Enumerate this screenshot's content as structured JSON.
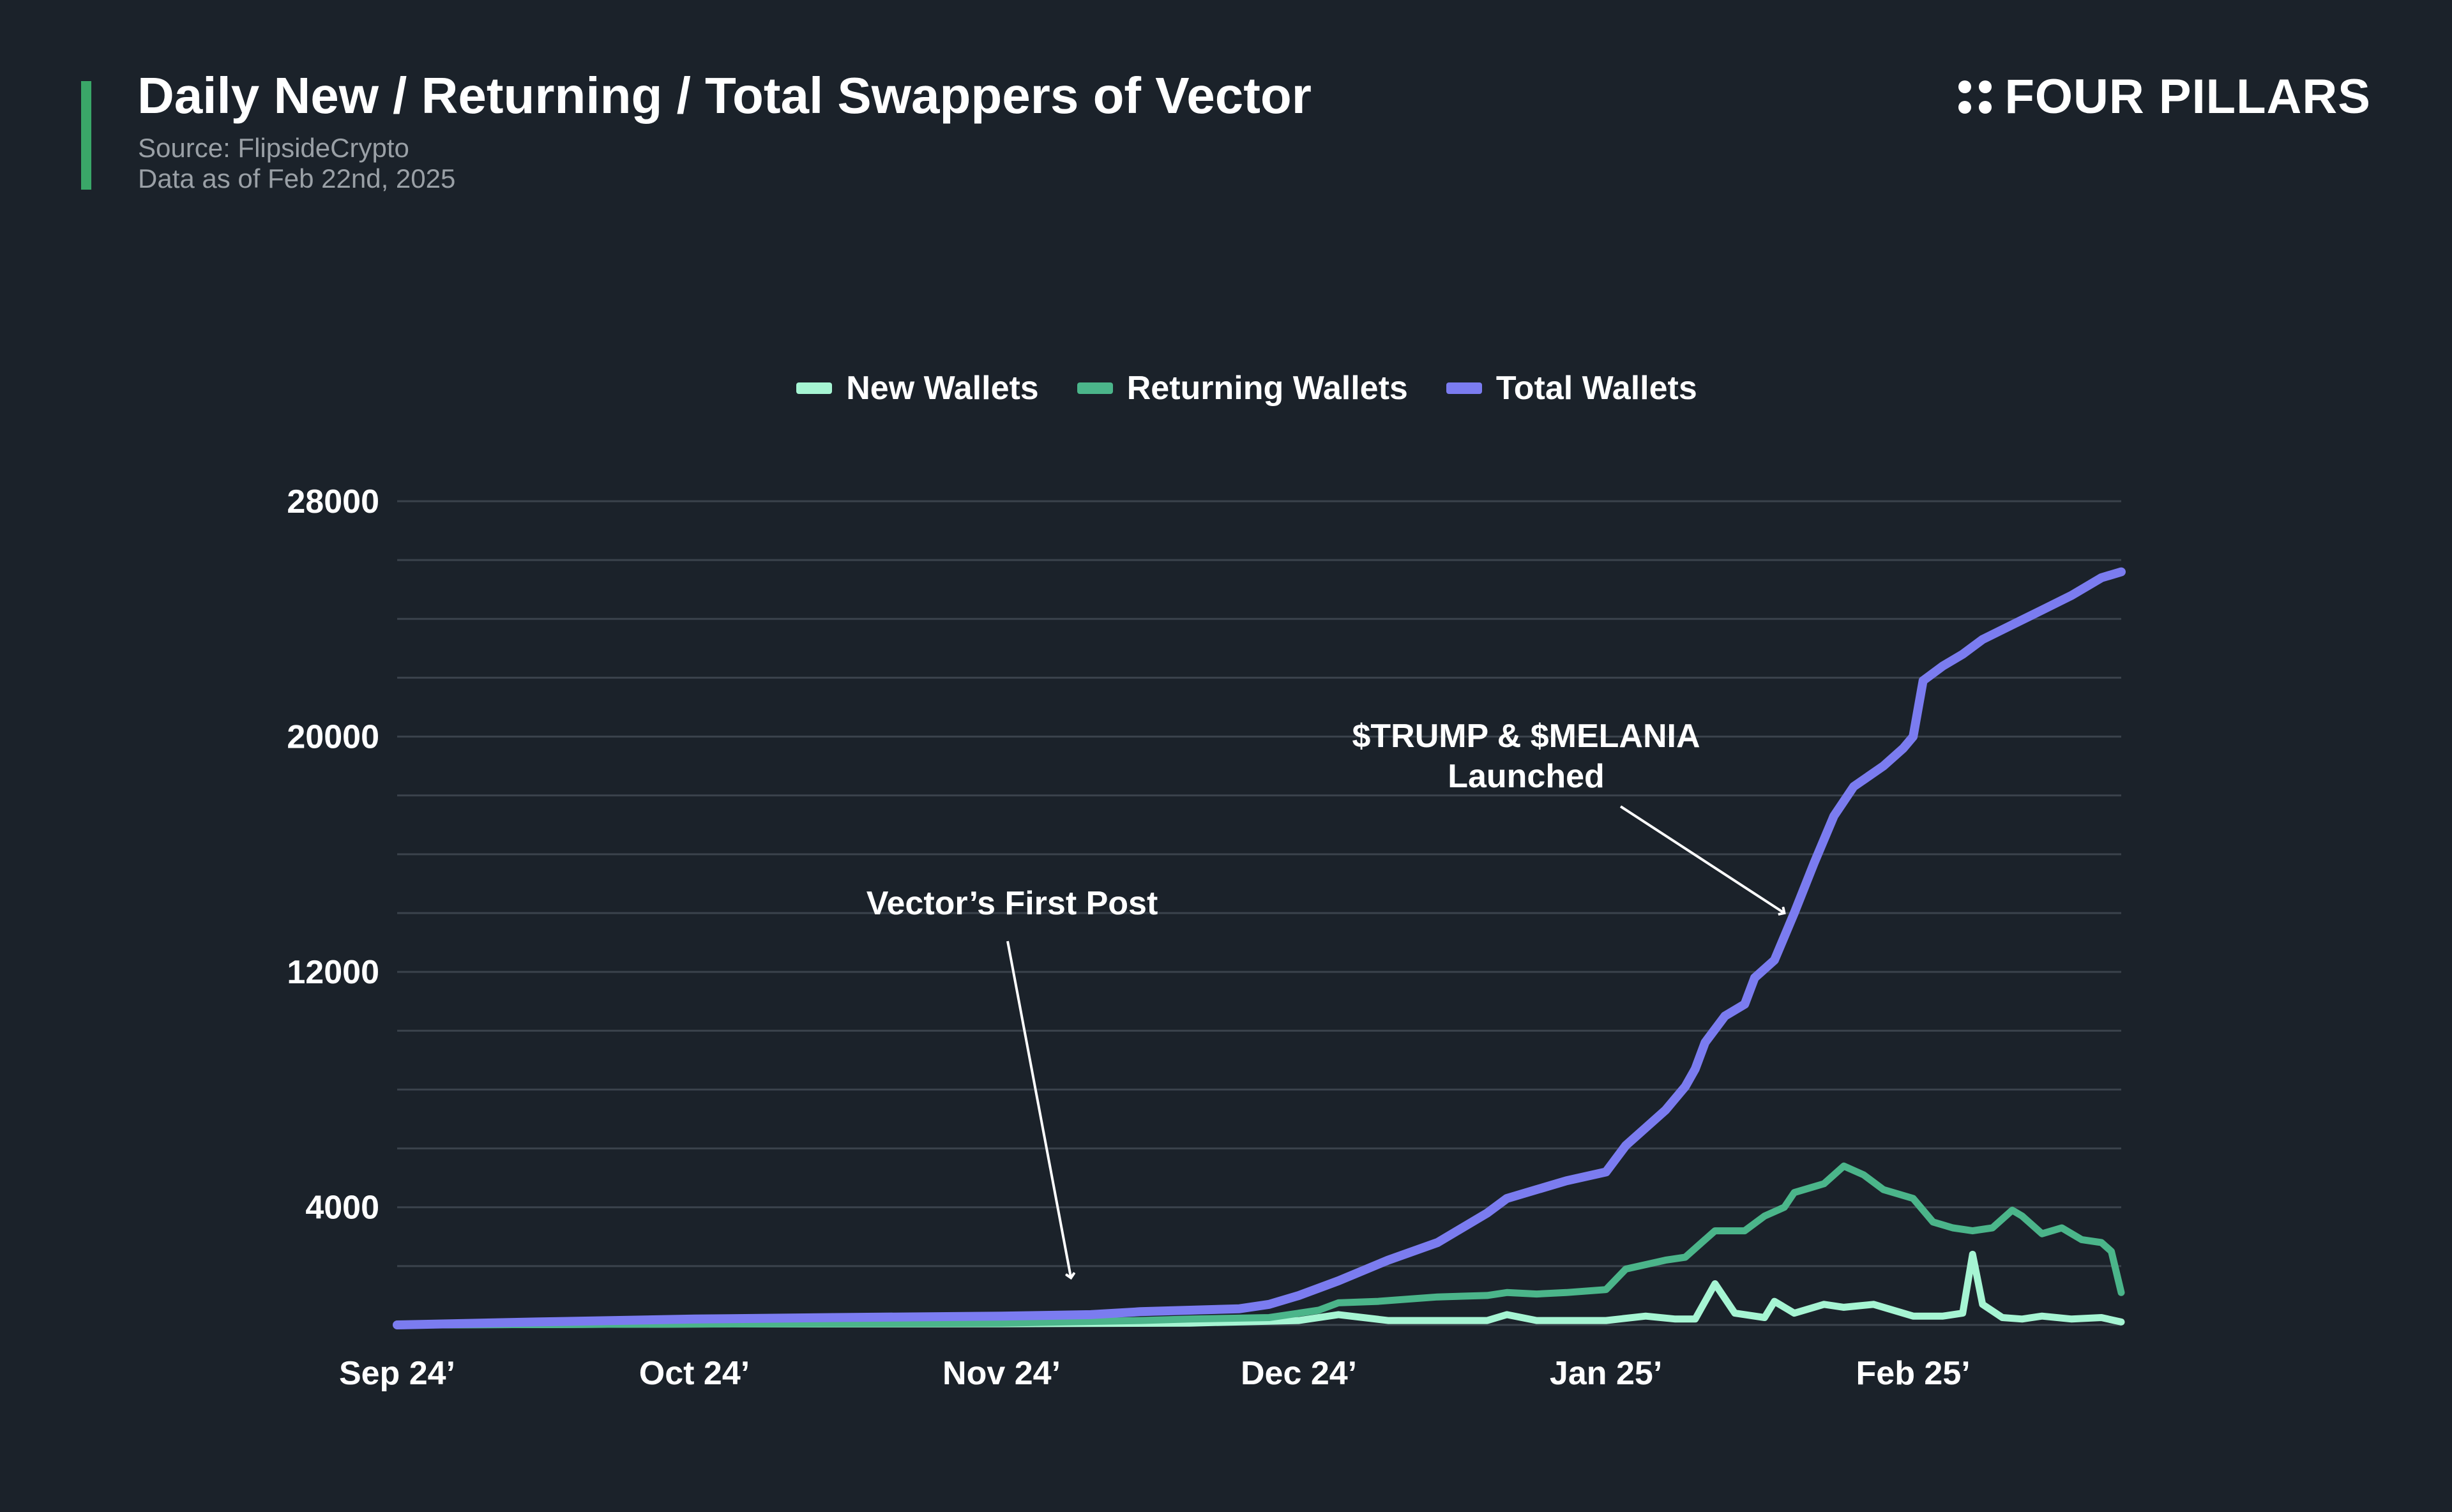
{
  "header": {
    "title": "Daily New / Returning / Total Swappers of Vector",
    "source": "Source: FlipsideCrypto",
    "as_of": "Data as of Feb 22nd, 2025"
  },
  "brand": {
    "name": "FOUR PILLARS",
    "icon": "four-dots-icon"
  },
  "colors": {
    "background": "#1b222a",
    "accent": "#3aa768",
    "new_wallets": "#a6f5d3",
    "returning_wallets": "#4bb58a",
    "total_wallets": "#7b7cf0",
    "grid": "#3b434c"
  },
  "chart_data": {
    "type": "line",
    "title": "Daily New / Returning / Total Swappers of Vector",
    "xlabel": "",
    "ylabel": "",
    "ylim": [
      0,
      28000
    ],
    "y_ticks": [
      4000,
      12000,
      20000,
      28000
    ],
    "grid": true,
    "legend_position": "top-center",
    "x_ticks": [
      {
        "label": "Sep 24’",
        "date": "2024-09-01"
      },
      {
        "label": "Oct 24’",
        "date": "2024-10-01"
      },
      {
        "label": "Nov 24’",
        "date": "2024-11-01"
      },
      {
        "label": "Dec 24’",
        "date": "2024-12-01"
      },
      {
        "label": "Jan 25’",
        "date": "2025-01-01"
      },
      {
        "label": "Feb 25’",
        "date": "2025-02-01"
      }
    ],
    "x_range": [
      "2024-09-01",
      "2025-02-22"
    ],
    "series": [
      {
        "name": "New Wallets",
        "color": "#a6f5d3",
        "points": [
          [
            "2024-09-01",
            0
          ],
          [
            "2024-10-01",
            30
          ],
          [
            "2024-11-01",
            40
          ],
          [
            "2024-11-20",
            60
          ],
          [
            "2024-12-01",
            150
          ],
          [
            "2024-12-05",
            350
          ],
          [
            "2024-12-10",
            150
          ],
          [
            "2024-12-15",
            150
          ],
          [
            "2024-12-20",
            150
          ],
          [
            "2024-12-22",
            350
          ],
          [
            "2024-12-25",
            150
          ],
          [
            "2024-12-28",
            150
          ],
          [
            "2025-01-01",
            150
          ],
          [
            "2025-01-05",
            300
          ],
          [
            "2025-01-08",
            200
          ],
          [
            "2025-01-10",
            200
          ],
          [
            "2025-01-12",
            1400
          ],
          [
            "2025-01-14",
            400
          ],
          [
            "2025-01-17",
            250
          ],
          [
            "2025-01-18",
            800
          ],
          [
            "2025-01-20",
            400
          ],
          [
            "2025-01-23",
            700
          ],
          [
            "2025-01-25",
            600
          ],
          [
            "2025-01-28",
            700
          ],
          [
            "2025-02-01",
            300
          ],
          [
            "2025-02-04",
            300
          ],
          [
            "2025-02-06",
            400
          ],
          [
            "2025-02-07",
            2400
          ],
          [
            "2025-02-08",
            700
          ],
          [
            "2025-02-10",
            250
          ],
          [
            "2025-02-12",
            200
          ],
          [
            "2025-02-14",
            300
          ],
          [
            "2025-02-17",
            200
          ],
          [
            "2025-02-20",
            250
          ],
          [
            "2025-02-22",
            100
          ]
        ]
      },
      {
        "name": "Returning Wallets",
        "color": "#4bb58a",
        "points": [
          [
            "2024-09-01",
            0
          ],
          [
            "2024-10-01",
            30
          ],
          [
            "2024-11-01",
            60
          ],
          [
            "2024-11-15",
            150
          ],
          [
            "2024-11-20",
            200
          ],
          [
            "2024-11-28",
            250
          ],
          [
            "2024-12-01",
            400
          ],
          [
            "2024-12-03",
            500
          ],
          [
            "2024-12-05",
            750
          ],
          [
            "2024-12-09",
            800
          ],
          [
            "2024-12-15",
            950
          ],
          [
            "2024-12-20",
            1000
          ],
          [
            "2024-12-22",
            1100
          ],
          [
            "2024-12-25",
            1050
          ],
          [
            "2024-12-28",
            1100
          ],
          [
            "2025-01-01",
            1200
          ],
          [
            "2025-01-03",
            1900
          ],
          [
            "2025-01-07",
            2200
          ],
          [
            "2025-01-09",
            2300
          ],
          [
            "2025-01-12",
            3200
          ],
          [
            "2025-01-15",
            3200
          ],
          [
            "2025-01-17",
            3700
          ],
          [
            "2025-01-19",
            4000
          ],
          [
            "2025-01-20",
            4500
          ],
          [
            "2025-01-23",
            4800
          ],
          [
            "2025-01-25",
            5400
          ],
          [
            "2025-01-27",
            5100
          ],
          [
            "2025-01-29",
            4600
          ],
          [
            "2025-02-01",
            4300
          ],
          [
            "2025-02-03",
            3500
          ],
          [
            "2025-02-05",
            3300
          ],
          [
            "2025-02-07",
            3200
          ],
          [
            "2025-02-09",
            3300
          ],
          [
            "2025-02-11",
            3900
          ],
          [
            "2025-02-12",
            3700
          ],
          [
            "2025-02-14",
            3100
          ],
          [
            "2025-02-16",
            3300
          ],
          [
            "2025-02-18",
            2900
          ],
          [
            "2025-02-20",
            2800
          ],
          [
            "2025-02-21",
            2500
          ],
          [
            "2025-02-22",
            1100
          ]
        ]
      },
      {
        "name": "Total Wallets",
        "color": "#7b7cf0",
        "points": [
          [
            "2024-09-01",
            0
          ],
          [
            "2024-09-15",
            100
          ],
          [
            "2024-10-01",
            200
          ],
          [
            "2024-10-15",
            250
          ],
          [
            "2024-11-01",
            300
          ],
          [
            "2024-11-10",
            350
          ],
          [
            "2024-11-15",
            450
          ],
          [
            "2024-11-20",
            500
          ],
          [
            "2024-11-25",
            550
          ],
          [
            "2024-11-28",
            700
          ],
          [
            "2024-12-01",
            1000
          ],
          [
            "2024-12-05",
            1500
          ],
          [
            "2024-12-10",
            2200
          ],
          [
            "2024-12-15",
            2800
          ],
          [
            "2024-12-20",
            3800
          ],
          [
            "2024-12-22",
            4300
          ],
          [
            "2024-12-25",
            4600
          ],
          [
            "2024-12-28",
            4900
          ],
          [
            "2025-01-01",
            5200
          ],
          [
            "2025-01-03",
            6100
          ],
          [
            "2025-01-05",
            6700
          ],
          [
            "2025-01-07",
            7300
          ],
          [
            "2025-01-09",
            8100
          ],
          [
            "2025-01-10",
            8700
          ],
          [
            "2025-01-11",
            9600
          ],
          [
            "2025-01-13",
            10500
          ],
          [
            "2025-01-15",
            10900
          ],
          [
            "2025-01-16",
            11800
          ],
          [
            "2025-01-18",
            12400
          ],
          [
            "2025-01-20",
            14000
          ],
          [
            "2025-01-22",
            15700
          ],
          [
            "2025-01-24",
            17300
          ],
          [
            "2025-01-26",
            18300
          ],
          [
            "2025-01-29",
            19000
          ],
          [
            "2025-01-31",
            19600
          ],
          [
            "2025-02-01",
            20000
          ],
          [
            "2025-02-02",
            21900
          ],
          [
            "2025-02-04",
            22400
          ],
          [
            "2025-02-06",
            22800
          ],
          [
            "2025-02-08",
            23300
          ],
          [
            "2025-02-11",
            23800
          ],
          [
            "2025-02-14",
            24300
          ],
          [
            "2025-02-17",
            24800
          ],
          [
            "2025-02-20",
            25400
          ],
          [
            "2025-02-22",
            25600
          ]
        ]
      }
    ],
    "annotations": [
      {
        "text": "Vector’s First Post",
        "date": "2024-11-08",
        "value": 1600
      },
      {
        "text_lines": [
          "$TRUMP & $MELANIA",
          "Launched"
        ],
        "date": "2025-01-19",
        "value": 14000
      }
    ]
  }
}
